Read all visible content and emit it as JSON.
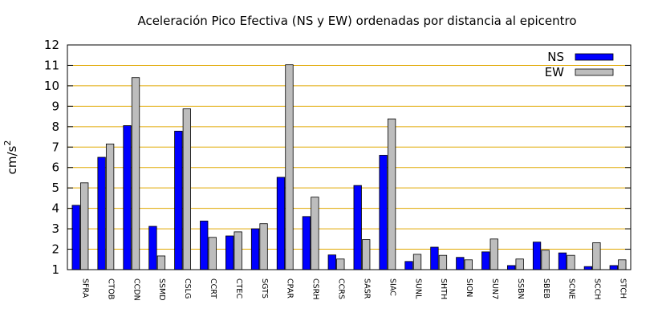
{
  "chart_data": {
    "type": "bar",
    "title": "Aceleración Pico Efectiva (NS y EW) ordenadas por distancia al epicentro",
    "xlabel": "",
    "ylabel": "cm/s",
    "ylabel_superscript": "2",
    "ylim": [
      1,
      12
    ],
    "yticks": [
      1,
      2,
      3,
      4,
      5,
      6,
      7,
      8,
      9,
      10,
      11,
      12
    ],
    "grid": "horizontal",
    "legend_position": "top-right",
    "categories": [
      "SFRA",
      "CTOB",
      "CCDN",
      "SSMD",
      "CSLG",
      "CCRT",
      "CTEC",
      "SGTS",
      "CPAR",
      "CSRH",
      "CCRS",
      "SASR",
      "SIAC",
      "SUNL",
      "SHTH",
      "SION",
      "SUN7",
      "SSBN",
      "SBEB",
      "SCNE",
      "SCCH",
      "STCH"
    ],
    "series": [
      {
        "name": "NS",
        "color": "#0000ff",
        "values": [
          4.15,
          6.5,
          8.05,
          3.12,
          7.78,
          3.38,
          2.65,
          3.0,
          5.52,
          3.6,
          1.72,
          5.12,
          6.6,
          1.4,
          2.1,
          1.6,
          1.87,
          1.2,
          2.35,
          1.82,
          1.15,
          1.2
        ]
      },
      {
        "name": "EW",
        "color": "#bdbdbd",
        "values": [
          5.25,
          7.15,
          10.4,
          1.67,
          8.87,
          2.58,
          2.85,
          3.25,
          11.03,
          4.55,
          1.52,
          2.47,
          8.38,
          1.75,
          1.7,
          1.48,
          2.5,
          1.52,
          1.95,
          1.7,
          2.32,
          1.48
        ]
      }
    ]
  }
}
